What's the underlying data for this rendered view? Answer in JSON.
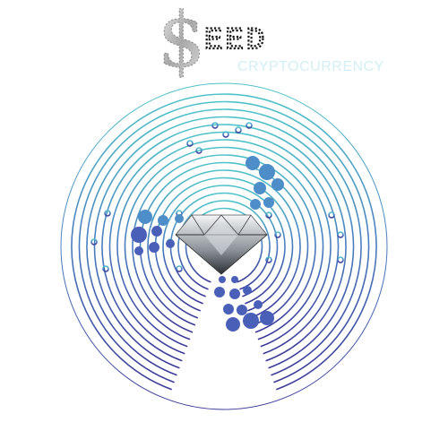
{
  "logo": {
    "symbol": "$",
    "name": "EED",
    "tagline": "CRYPTOCURRENCY"
  }
}
